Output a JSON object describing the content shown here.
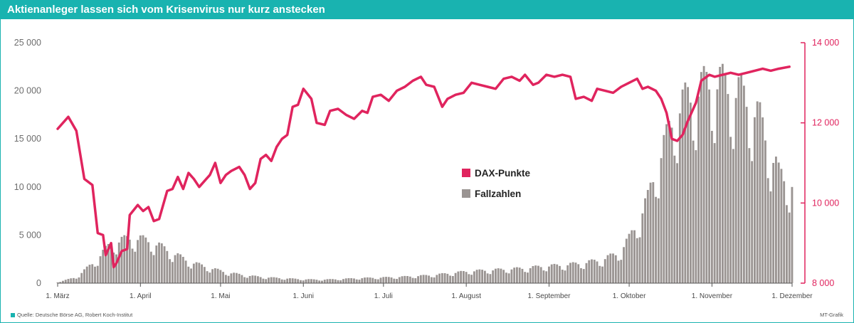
{
  "header": {
    "title": "Aktienanleger lassen sich vom Krisenvirus nur kurz anstecken"
  },
  "footer": {
    "source": "Quelle: Deutsche Börse AG, Robert Koch-Institut",
    "credit": "MT-Grafik"
  },
  "colors": {
    "accent": "#19b3b0",
    "dax": "#e0245e",
    "cases": "#9a9492"
  },
  "chart_data": {
    "type": "bar+line",
    "title": "Aktienanleger lassen sich vom Krisenvirus nur kurz anstecken",
    "x_ticks": [
      "1. März",
      "1. April",
      "1. Mai",
      "1. Juni",
      "1. Juli",
      "1. August",
      "1. September",
      "1. Oktober",
      "1. November",
      "1. Dezember"
    ],
    "y_left": {
      "ticks": [
        "25 000",
        "20 000",
        "15 000",
        "10 000",
        "5 000",
        "0"
      ],
      "range": [
        0,
        25000
      ]
    },
    "y_right": {
      "ticks": [
        "14 000",
        "12 000",
        "10 000",
        "8 000"
      ],
      "range": [
        8000,
        14000
      ]
    },
    "legend": {
      "position": "center",
      "entries": [
        "DAX-Punkte",
        "Fallzahlen"
      ]
    },
    "grid": false,
    "series": [
      {
        "name": "Fallzahlen",
        "type": "bar",
        "axis": "left",
        "weekly_points": [
          {
            "day": 0,
            "value": 100
          },
          {
            "day": 7,
            "value": 600
          },
          {
            "day": 14,
            "value": 2200
          },
          {
            "day": 20,
            "value": 4000
          },
          {
            "day": 28,
            "value": 4600
          },
          {
            "day": 35,
            "value": 4200
          },
          {
            "day": 42,
            "value": 3200
          },
          {
            "day": 49,
            "value": 2200
          },
          {
            "day": 56,
            "value": 1600
          },
          {
            "day": 63,
            "value": 1100
          },
          {
            "day": 70,
            "value": 800
          },
          {
            "day": 77,
            "value": 600
          },
          {
            "day": 84,
            "value": 500
          },
          {
            "day": 91,
            "value": 400
          },
          {
            "day": 98,
            "value": 350
          },
          {
            "day": 105,
            "value": 400
          },
          {
            "day": 112,
            "value": 500
          },
          {
            "day": 119,
            "value": 550
          },
          {
            "day": 126,
            "value": 600
          },
          {
            "day": 133,
            "value": 700
          },
          {
            "day": 140,
            "value": 800
          },
          {
            "day": 147,
            "value": 1000
          },
          {
            "day": 154,
            "value": 1200
          },
          {
            "day": 161,
            "value": 1300
          },
          {
            "day": 168,
            "value": 1400
          },
          {
            "day": 175,
            "value": 1500
          },
          {
            "day": 182,
            "value": 1700
          },
          {
            "day": 189,
            "value": 1800
          },
          {
            "day": 196,
            "value": 2000
          },
          {
            "day": 203,
            "value": 2300
          },
          {
            "day": 210,
            "value": 3000
          },
          {
            "day": 214,
            "value": 4500
          },
          {
            "day": 217,
            "value": 6000
          },
          {
            "day": 221,
            "value": 8500
          },
          {
            "day": 224,
            "value": 11500
          },
          {
            "day": 228,
            "value": 14500
          },
          {
            "day": 231,
            "value": 17000
          },
          {
            "day": 235,
            "value": 18300
          },
          {
            "day": 238,
            "value": 19000
          },
          {
            "day": 242,
            "value": 19800
          },
          {
            "day": 245,
            "value": 20300
          },
          {
            "day": 249,
            "value": 20000
          },
          {
            "day": 252,
            "value": 19500
          },
          {
            "day": 256,
            "value": 19000
          },
          {
            "day": 259,
            "value": 18000
          },
          {
            "day": 263,
            "value": 16500
          },
          {
            "day": 266,
            "value": 14000
          },
          {
            "day": 270,
            "value": 11000
          },
          {
            "day": 275,
            "value": 10000
          }
        ]
      },
      {
        "name": "DAX-Punkte",
        "type": "line",
        "axis": "right",
        "points": [
          {
            "day": 0,
            "value": 11850
          },
          {
            "day": 4,
            "value": 12150
          },
          {
            "day": 7,
            "value": 11800
          },
          {
            "day": 10,
            "value": 10600
          },
          {
            "day": 13,
            "value": 10450
          },
          {
            "day": 15,
            "value": 9250
          },
          {
            "day": 17,
            "value": 9200
          },
          {
            "day": 18,
            "value": 8700
          },
          {
            "day": 20,
            "value": 9000
          },
          {
            "day": 21,
            "value": 8400
          },
          {
            "day": 22,
            "value": 8500
          },
          {
            "day": 24,
            "value": 8800
          },
          {
            "day": 26,
            "value": 8850
          },
          {
            "day": 27,
            "value": 9700
          },
          {
            "day": 30,
            "value": 9950
          },
          {
            "day": 32,
            "value": 9800
          },
          {
            "day": 34,
            "value": 9900
          },
          {
            "day": 36,
            "value": 9550
          },
          {
            "day": 38,
            "value": 9600
          },
          {
            "day": 41,
            "value": 10300
          },
          {
            "day": 43,
            "value": 10350
          },
          {
            "day": 45,
            "value": 10650
          },
          {
            "day": 47,
            "value": 10350
          },
          {
            "day": 49,
            "value": 10750
          },
          {
            "day": 51,
            "value": 10600
          },
          {
            "day": 53,
            "value": 10400
          },
          {
            "day": 55,
            "value": 10550
          },
          {
            "day": 57,
            "value": 10700
          },
          {
            "day": 59,
            "value": 11000
          },
          {
            "day": 61,
            "value": 10500
          },
          {
            "day": 63,
            "value": 10700
          },
          {
            "day": 65,
            "value": 10800
          },
          {
            "day": 68,
            "value": 10900
          },
          {
            "day": 70,
            "value": 10700
          },
          {
            "day": 72,
            "value": 10350
          },
          {
            "day": 74,
            "value": 10500
          },
          {
            "day": 76,
            "value": 11100
          },
          {
            "day": 78,
            "value": 11200
          },
          {
            "day": 80,
            "value": 11050
          },
          {
            "day": 82,
            "value": 11400
          },
          {
            "day": 84,
            "value": 11600
          },
          {
            "day": 86,
            "value": 11700
          },
          {
            "day": 88,
            "value": 12400
          },
          {
            "day": 90,
            "value": 12450
          },
          {
            "day": 92,
            "value": 12850
          },
          {
            "day": 95,
            "value": 12600
          },
          {
            "day": 97,
            "value": 12000
          },
          {
            "day": 100,
            "value": 11950
          },
          {
            "day": 102,
            "value": 12300
          },
          {
            "day": 105,
            "value": 12350
          },
          {
            "day": 108,
            "value": 12200
          },
          {
            "day": 111,
            "value": 12100
          },
          {
            "day": 114,
            "value": 12300
          },
          {
            "day": 116,
            "value": 12250
          },
          {
            "day": 118,
            "value": 12650
          },
          {
            "day": 121,
            "value": 12700
          },
          {
            "day": 124,
            "value": 12550
          },
          {
            "day": 127,
            "value": 12800
          },
          {
            "day": 130,
            "value": 12900
          },
          {
            "day": 133,
            "value": 13050
          },
          {
            "day": 136,
            "value": 13150
          },
          {
            "day": 138,
            "value": 12950
          },
          {
            "day": 141,
            "value": 12900
          },
          {
            "day": 144,
            "value": 12400
          },
          {
            "day": 146,
            "value": 12600
          },
          {
            "day": 149,
            "value": 12700
          },
          {
            "day": 152,
            "value": 12750
          },
          {
            "day": 155,
            "value": 13000
          },
          {
            "day": 158,
            "value": 12950
          },
          {
            "day": 161,
            "value": 12900
          },
          {
            "day": 164,
            "value": 12850
          },
          {
            "day": 167,
            "value": 13100
          },
          {
            "day": 170,
            "value": 13150
          },
          {
            "day": 173,
            "value": 13050
          },
          {
            "day": 175,
            "value": 13200
          },
          {
            "day": 178,
            "value": 12950
          },
          {
            "day": 180,
            "value": 13000
          },
          {
            "day": 183,
            "value": 13200
          },
          {
            "day": 186,
            "value": 13150
          },
          {
            "day": 189,
            "value": 13200
          },
          {
            "day": 192,
            "value": 13150
          },
          {
            "day": 194,
            "value": 12600
          },
          {
            "day": 197,
            "value": 12650
          },
          {
            "day": 200,
            "value": 12550
          },
          {
            "day": 202,
            "value": 12850
          },
          {
            "day": 205,
            "value": 12800
          },
          {
            "day": 208,
            "value": 12750
          },
          {
            "day": 211,
            "value": 12900
          },
          {
            "day": 214,
            "value": 13000
          },
          {
            "day": 217,
            "value": 13100
          },
          {
            "day": 219,
            "value": 12850
          },
          {
            "day": 221,
            "value": 12900
          },
          {
            "day": 224,
            "value": 12800
          },
          {
            "day": 226,
            "value": 12600
          },
          {
            "day": 228,
            "value": 12250
          },
          {
            "day": 230,
            "value": 11600
          },
          {
            "day": 232,
            "value": 11550
          },
          {
            "day": 234,
            "value": 11700
          },
          {
            "day": 236,
            "value": 12050
          },
          {
            "day": 239,
            "value": 12500
          },
          {
            "day": 241,
            "value": 13050
          },
          {
            "day": 244,
            "value": 13200
          },
          {
            "day": 246,
            "value": 13150
          },
          {
            "day": 249,
            "value": 13200
          },
          {
            "day": 252,
            "value": 13250
          },
          {
            "day": 255,
            "value": 13200
          },
          {
            "day": 258,
            "value": 13250
          },
          {
            "day": 261,
            "value": 13300
          },
          {
            "day": 264,
            "value": 13350
          },
          {
            "day": 267,
            "value": 13300
          },
          {
            "day": 270,
            "value": 13350
          },
          {
            "day": 274,
            "value": 13400
          }
        ]
      }
    ]
  }
}
